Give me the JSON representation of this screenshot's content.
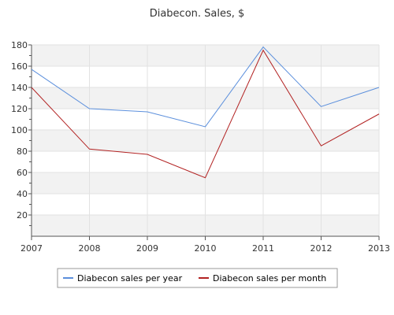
{
  "chart_data": {
    "type": "line",
    "title": "Diabecon. Sales, $",
    "xlabel": "",
    "ylabel": "",
    "x": [
      "2007",
      "2008",
      "2009",
      "2010",
      "2011",
      "2012",
      "2013"
    ],
    "ylim": [
      0,
      180
    ],
    "yticks": [
      20,
      40,
      60,
      80,
      100,
      120,
      140,
      160,
      180
    ],
    "grid": true,
    "legend_position": "bottom",
    "series": [
      {
        "name": "Diabecon sales per year",
        "color": "#5b8fdc",
        "values": [
          157,
          120,
          117,
          103,
          178,
          122,
          140
        ]
      },
      {
        "name": "Diabecon sales per month",
        "color": "#b22222",
        "values": [
          140,
          82,
          77,
          55,
          175,
          85,
          115
        ]
      }
    ]
  }
}
